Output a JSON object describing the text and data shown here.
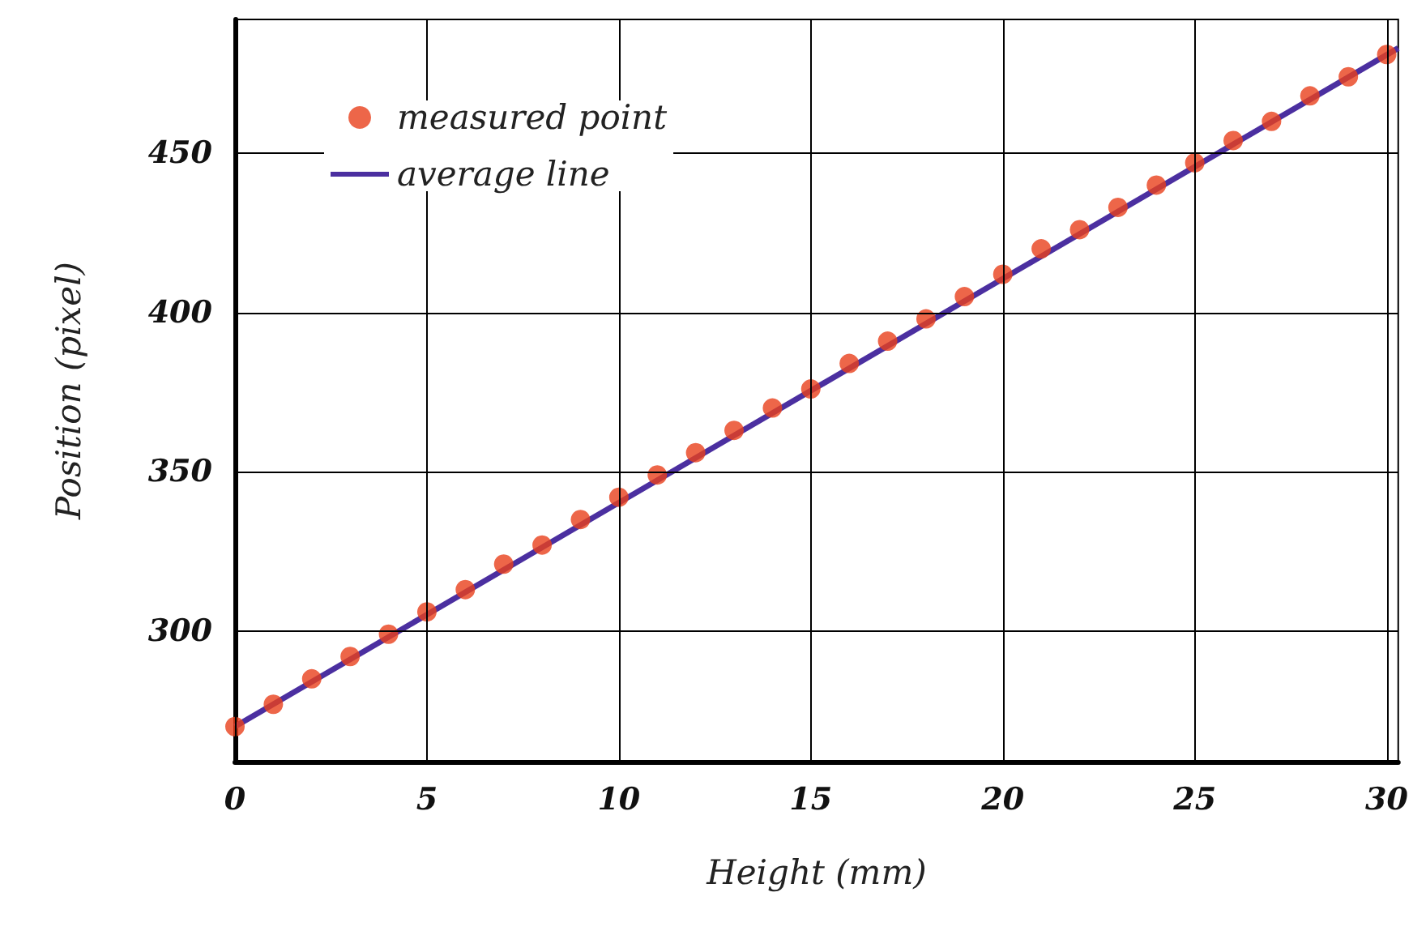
{
  "chart_data": {
    "type": "scatter",
    "xlabel": "Height (mm)",
    "ylabel": "Position (pixel)",
    "xlim": [
      0,
      30.3
    ],
    "xticks": [
      0,
      5,
      10,
      15,
      20,
      25,
      30
    ],
    "ylim": [
      259,
      492
    ],
    "yticks": [
      300,
      350,
      400,
      450
    ],
    "grid": true,
    "legend": "top left",
    "series": [
      {
        "name": "measured point",
        "marker": "circle",
        "color": "#e8401c",
        "x": [
          0,
          1,
          2,
          3,
          4,
          5,
          6,
          7,
          8,
          9,
          10,
          11,
          12,
          13,
          14,
          15,
          16,
          17,
          18,
          19,
          20,
          21,
          22,
          23,
          24,
          25,
          26,
          27,
          28,
          29,
          30
        ],
        "values": [
          270,
          277,
          285,
          292,
          299,
          306,
          313,
          321,
          327,
          335,
          342,
          349,
          356,
          363,
          370,
          376,
          384,
          391,
          398,
          405,
          412,
          420,
          426,
          433,
          440,
          447,
          454,
          460,
          468,
          474,
          481
        ]
      },
      {
        "name": "average line",
        "type": "line",
        "color": "#4b2fa0",
        "x": [
          0,
          30.3
        ],
        "values": [
          270,
          483
        ]
      }
    ]
  }
}
